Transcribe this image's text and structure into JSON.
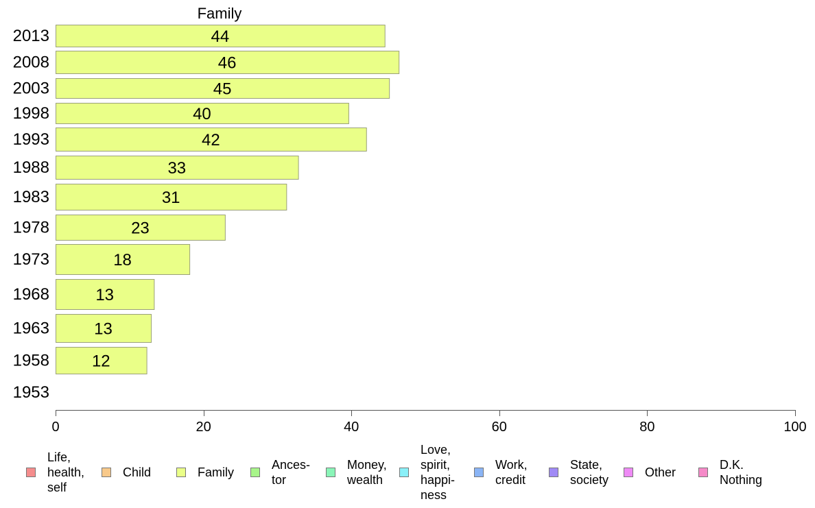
{
  "chart_data": {
    "type": "bar",
    "orientation": "horizontal",
    "title": "Family",
    "xlabel": "",
    "ylabel": "",
    "xlim": [
      0,
      100
    ],
    "xticks": [
      0,
      20,
      40,
      60,
      80,
      100
    ],
    "grid": false,
    "legend_position": "bottom",
    "categories": [
      "2013",
      "2008",
      "2003",
      "1998",
      "1993",
      "1988",
      "1983",
      "1978",
      "1973",
      "1968",
      "1963",
      "1958",
      "1953"
    ],
    "series": [
      {
        "name": "Family",
        "color": "#eaff88",
        "values": [
          44.5,
          46.4,
          45.1,
          39.6,
          42,
          32.8,
          31.2,
          22.9,
          18.1,
          13.3,
          12.9,
          12.3,
          null
        ],
        "labels": [
          "44",
          "46",
          "45",
          "40",
          "42",
          "33",
          "31",
          "23",
          "18",
          "13",
          "13",
          "12",
          ""
        ]
      }
    ],
    "legend": [
      {
        "lines": [
          "Life,",
          "health,",
          "self"
        ],
        "color": "#f58d8d"
      },
      {
        "lines": [
          "Child"
        ],
        "color": "#f8c98a"
      },
      {
        "lines": [
          "Family"
        ],
        "color": "#eaff88"
      },
      {
        "lines": [
          "Ances-",
          "tor"
        ],
        "color": "#a8f58a"
      },
      {
        "lines": [
          "Money,",
          "wealth"
        ],
        "color": "#8af5b8"
      },
      {
        "lines": [
          "Love,",
          "spirit,",
          "happi-",
          "ness"
        ],
        "color": "#8af0f8"
      },
      {
        "lines": [
          "Work,",
          "credit"
        ],
        "color": "#8ab4f5"
      },
      {
        "lines": [
          "State,",
          "society"
        ],
        "color": "#a08af5"
      },
      {
        "lines": [
          "Other"
        ],
        "color": "#ee8af5"
      },
      {
        "lines": [
          "D.K.",
          "Nothing"
        ],
        "color": "#f58ac8"
      }
    ]
  }
}
